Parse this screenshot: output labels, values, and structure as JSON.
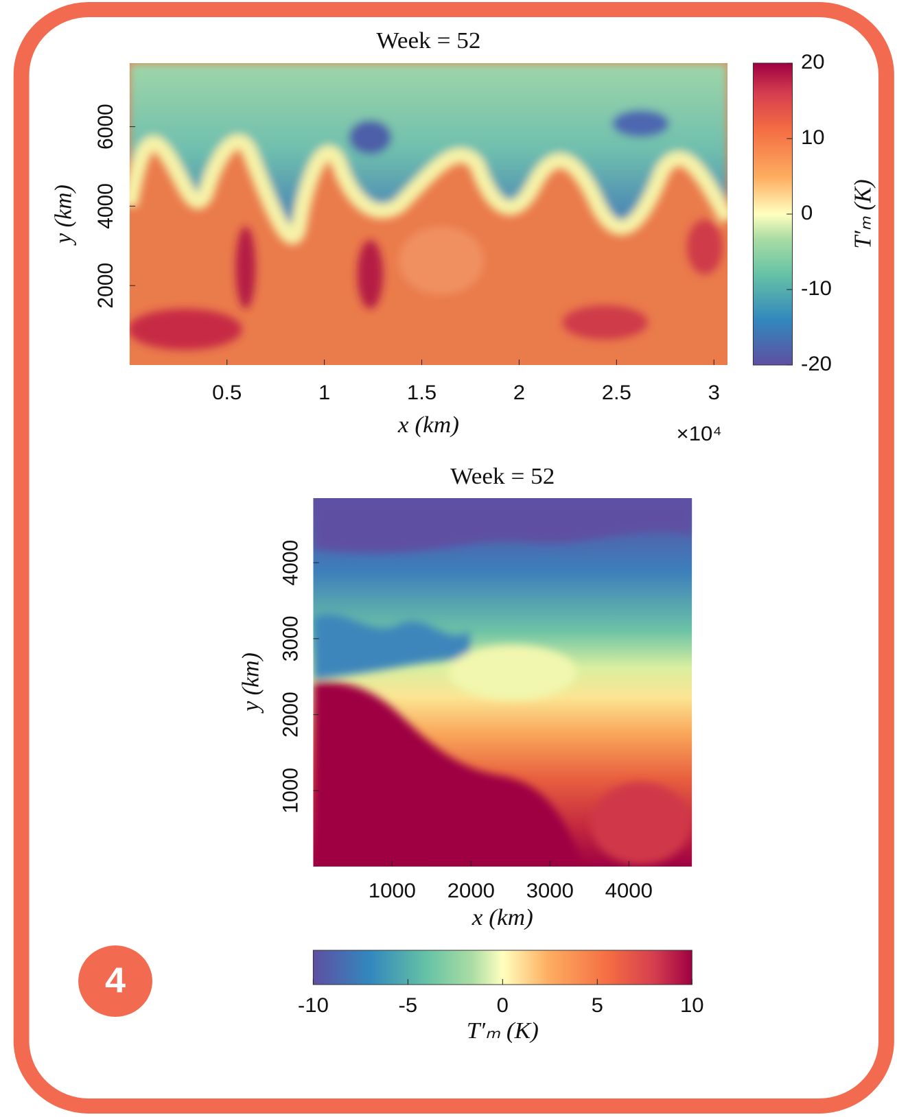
{
  "chart_data": [
    {
      "type": "heatmap",
      "title": "Week = 52",
      "x_label": "x (km)",
      "y_label": "y (km)",
      "x_multiplier": "×10⁴",
      "xlim": [
        0,
        30700
      ],
      "ylim": [
        0,
        7600
      ],
      "xticks": [
        {
          "value": 5000,
          "label": "0.5"
        },
        {
          "value": 10000,
          "label": "1"
        },
        {
          "value": 15000,
          "label": "1.5"
        },
        {
          "value": 20000,
          "label": "2"
        },
        {
          "value": 25000,
          "label": "2.5"
        },
        {
          "value": 30000,
          "label": "3"
        }
      ],
      "yticks": [
        2000,
        4000,
        6000
      ],
      "colorbar": {
        "orientation": "vertical",
        "label": "T′ₘ (K)",
        "lim": [
          -20,
          20
        ],
        "ticks": [
          -20,
          -10,
          0,
          10,
          20
        ]
      }
    },
    {
      "type": "heatmap",
      "title": "Week = 52",
      "x_label": "x (km)",
      "y_label": "y (km)",
      "xlim": [
        0,
        4800
      ],
      "ylim": [
        0,
        4850
      ],
      "xticks": [
        1000,
        2000,
        3000,
        4000
      ],
      "yticks": [
        1000,
        2000,
        3000,
        4000
      ],
      "colorbar": {
        "orientation": "horizontal",
        "label": "T′ₘ (K)",
        "lim": [
          -10,
          10
        ],
        "ticks": [
          -10,
          -5,
          0,
          5,
          10
        ]
      }
    }
  ],
  "badge": "4"
}
